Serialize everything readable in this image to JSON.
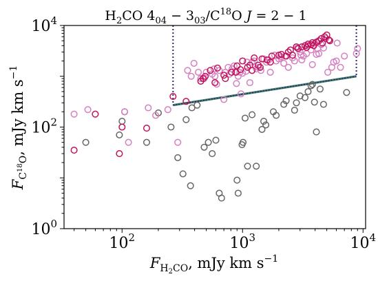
{
  "chart_data": {
    "type": "scatter",
    "title": "H₂CO 4₀₄ − 3₀₃/C¹⁸O J = 2 − 1",
    "title_parts": {
      "main": "H",
      "sub1": "2",
      "mid": "CO 4",
      "sub2": "04",
      "minus": " − 3",
      "sub3": "03",
      "slash": "/C",
      "sup": "18",
      "end": "O ",
      "J": "J",
      "eq": " = 2 − 1"
    },
    "xlabel": "F_H2CO, mJy km s^-1",
    "xlabel_parts": {
      "F": "F",
      "sub": "H",
      "sub2": "2",
      "sub3": "CO",
      "rest": ", mJy km s",
      "sup": "−1"
    },
    "ylabel": "F_C18O, mJy km s^-1",
    "ylabel_parts": {
      "F": "F",
      "sub": "C",
      "sup18": "18",
      "sub2": "O",
      "rest": ", mJy km s",
      "sup": "−1"
    },
    "x_scale": "log",
    "y_scale": "log",
    "xlim": [
      33,
      10500
    ],
    "ylim": [
      1,
      10000
    ],
    "x_ticks": [
      100,
      1000,
      10000
    ],
    "x_tick_labels": [
      {
        "base": "10",
        "exp": "2"
      },
      {
        "base": "10",
        "exp": "3"
      },
      {
        "base": "10",
        "exp": "4"
      }
    ],
    "y_ticks": [
      1,
      100,
      10000
    ],
    "y_tick_labels": [
      {
        "base": "10",
        "exp": "0"
      },
      {
        "base": "10",
        "exp": "2"
      },
      {
        "base": "10",
        "exp": "4"
      }
    ],
    "grid": false,
    "legend": "none",
    "colors": {
      "dark_magenta": "#c0125a",
      "light_pink": "#d67fc0",
      "gray": "#666666",
      "boundary_purple": "#35236e",
      "boundary_teal": "#3a7d6a"
    },
    "boundary": {
      "left_x": 265,
      "right_x": 8800,
      "top_y": 10000,
      "bottom": [
        [
          265,
          270
        ],
        [
          8800,
          1000
        ]
      ]
    },
    "series": [
      {
        "color_key": "gray",
        "points": [
          [
            50,
            50
          ],
          [
            95,
            70
          ],
          [
            100,
            130
          ],
          [
            105,
            200
          ],
          [
            160,
            50
          ],
          [
            200,
            190
          ],
          [
            255,
            100
          ],
          [
            290,
            25
          ],
          [
            320,
            12
          ],
          [
            340,
            140
          ],
          [
            370,
            7
          ],
          [
            380,
            240
          ],
          [
            420,
            270
          ],
          [
            480,
            40
          ],
          [
            520,
            50
          ],
          [
            560,
            30
          ],
          [
            600,
            55
          ],
          [
            640,
            5
          ],
          [
            670,
            4
          ],
          [
            900,
            9
          ],
          [
            920,
            5
          ],
          [
            990,
            45
          ],
          [
            1010,
            50
          ],
          [
            1050,
            150
          ],
          [
            1100,
            17
          ],
          [
            1200,
            175
          ],
          [
            1300,
            17
          ],
          [
            1450,
            90
          ],
          [
            1500,
            130
          ],
          [
            1560,
            110
          ],
          [
            1800,
            200
          ],
          [
            1900,
            170
          ],
          [
            2200,
            280
          ],
          [
            2300,
            330
          ],
          [
            2700,
            215
          ],
          [
            2800,
            300
          ],
          [
            3000,
            410
          ],
          [
            3300,
            380
          ],
          [
            3500,
            500
          ],
          [
            3700,
            650
          ],
          [
            3800,
            690
          ],
          [
            3950,
            310
          ],
          [
            4100,
            80
          ],
          [
            4400,
            560
          ],
          [
            4700,
            280
          ],
          [
            7300,
            480
          ]
        ]
      },
      {
        "color_key": "light_pink",
        "points": [
          [
            40,
            180
          ],
          [
            52,
            220
          ],
          [
            105,
            200
          ],
          [
            113,
            50
          ],
          [
            165,
            240
          ],
          [
            190,
            170
          ],
          [
            240,
            220
          ],
          [
            290,
            50
          ],
          [
            350,
            1300
          ],
          [
            375,
            1000
          ],
          [
            395,
            1800
          ],
          [
            430,
            1200
          ],
          [
            450,
            900
          ],
          [
            480,
            900
          ],
          [
            500,
            1200
          ],
          [
            560,
            1100
          ],
          [
            580,
            1400
          ],
          [
            590,
            1000
          ],
          [
            610,
            700
          ],
          [
            640,
            1300
          ],
          [
            700,
            350
          ],
          [
            720,
            1200
          ],
          [
            760,
            1500
          ],
          [
            780,
            1100
          ],
          [
            820,
            1400
          ],
          [
            850,
            1600
          ],
          [
            890,
            720
          ],
          [
            920,
            1000
          ],
          [
            950,
            1200
          ],
          [
            970,
            450
          ],
          [
            1000,
            1150
          ],
          [
            1070,
            1250
          ],
          [
            1090,
            1900
          ],
          [
            1150,
            750
          ],
          [
            1200,
            1900
          ],
          [
            1250,
            2000
          ],
          [
            1300,
            1400
          ],
          [
            1350,
            1500
          ],
          [
            1420,
            1300
          ],
          [
            1500,
            2200
          ],
          [
            1580,
            1900
          ],
          [
            1650,
            2100
          ],
          [
            1700,
            1200
          ],
          [
            1850,
            2600
          ],
          [
            1900,
            2000
          ],
          [
            2000,
            2200
          ],
          [
            2100,
            2400
          ],
          [
            2200,
            1800
          ],
          [
            2250,
            2500
          ],
          [
            2400,
            1500
          ],
          [
            2600,
            2300
          ],
          [
            2700,
            2000
          ],
          [
            2850,
            3600
          ],
          [
            3000,
            3000
          ],
          [
            3050,
            2600
          ],
          [
            3100,
            2100
          ],
          [
            3200,
            2500
          ],
          [
            3400,
            2800
          ],
          [
            3500,
            4000
          ],
          [
            3700,
            3300
          ],
          [
            3800,
            1700
          ],
          [
            4000,
            4500
          ],
          [
            4100,
            2700
          ],
          [
            4200,
            3500
          ],
          [
            4300,
            2800
          ],
          [
            4500,
            4200
          ],
          [
            4700,
            3600
          ],
          [
            4900,
            5500
          ],
          [
            5100,
            1200
          ],
          [
            5500,
            1500
          ],
          [
            5700,
            1900
          ],
          [
            6000,
            2000
          ],
          [
            6100,
            4500
          ],
          [
            6500,
            1500
          ],
          [
            7000,
            2500
          ],
          [
            8800,
            2800
          ],
          [
            9000,
            3500
          ]
        ]
      },
      {
        "color_key": "dark_magenta",
        "points": [
          [
            40,
            35
          ],
          [
            60,
            180
          ],
          [
            95,
            30
          ],
          [
            100,
            100
          ],
          [
            160,
            95
          ],
          [
            265,
            400
          ],
          [
            340,
            320
          ],
          [
            450,
            800
          ],
          [
            470,
            900
          ],
          [
            490,
            1000
          ],
          [
            540,
            1300
          ],
          [
            590,
            750
          ],
          [
            620,
            1450
          ],
          [
            700,
            1050
          ],
          [
            720,
            900
          ],
          [
            810,
            1200
          ],
          [
            880,
            1200
          ],
          [
            900,
            1600
          ],
          [
            960,
            1350
          ],
          [
            1000,
            2000
          ],
          [
            1100,
            1500
          ],
          [
            1150,
            1650
          ],
          [
            1200,
            1300
          ],
          [
            1250,
            2300
          ],
          [
            1350,
            1650
          ],
          [
            1400,
            1500
          ],
          [
            1450,
            2200
          ],
          [
            1600,
            2100
          ],
          [
            1700,
            1900
          ],
          [
            1750,
            2500
          ],
          [
            2000,
            2600
          ],
          [
            2100,
            2700
          ],
          [
            2300,
            2500
          ],
          [
            2400,
            3000
          ],
          [
            2500,
            3300
          ],
          [
            2600,
            2600
          ],
          [
            2800,
            3800
          ],
          [
            2900,
            3500
          ],
          [
            3100,
            3800
          ],
          [
            3300,
            4000
          ],
          [
            3400,
            3700
          ],
          [
            3500,
            4300
          ],
          [
            3700,
            4200
          ],
          [
            3800,
            4600
          ],
          [
            3900,
            4000
          ],
          [
            4100,
            4700
          ],
          [
            4300,
            5000
          ],
          [
            4500,
            5500
          ],
          [
            4600,
            4500
          ],
          [
            4800,
            6000
          ],
          [
            5000,
            6500
          ],
          [
            5200,
            5200
          ],
          [
            5300,
            5000
          ]
        ]
      }
    ]
  }
}
